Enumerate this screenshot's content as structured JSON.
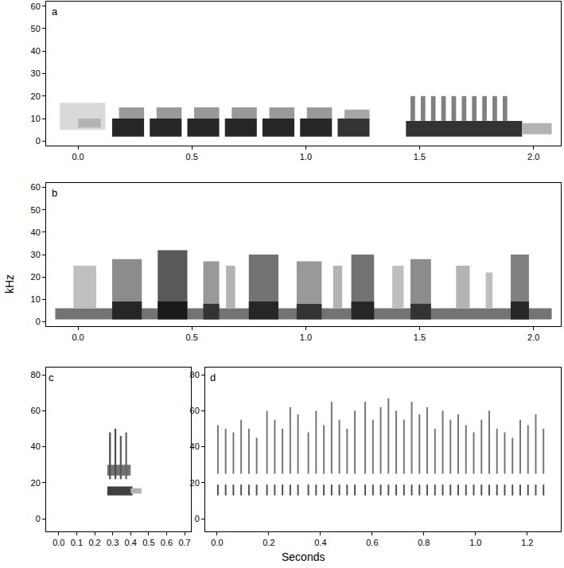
{
  "chart_data": [
    {
      "type": "spectrogram",
      "label": "a",
      "xlim": [
        -0.14,
        2.12
      ],
      "ylim": [
        -2,
        62
      ],
      "xticks": [
        {
          "value": 0,
          "label": "0.0"
        },
        0.5,
        {
          "value": 1,
          "label": "1.0"
        },
        1.5,
        {
          "value": 2,
          "label": "2.0"
        }
      ],
      "yticks": [
        0,
        10,
        20,
        30,
        40,
        50,
        60
      ],
      "grid": false,
      "marks": [
        [
          -0.08,
          0.12,
          5,
          17,
          0.15
        ],
        [
          0.0,
          0.1,
          6,
          10,
          0.3
        ],
        [
          0.15,
          0.29,
          2,
          10,
          0.85
        ],
        [
          0.18,
          0.29,
          10,
          15,
          0.4
        ],
        [
          0.315,
          0.455,
          2,
          10,
          0.85
        ],
        [
          0.345,
          0.455,
          10,
          15,
          0.4
        ],
        [
          0.48,
          0.62,
          2,
          10,
          0.85
        ],
        [
          0.51,
          0.62,
          10,
          15,
          0.4
        ],
        [
          0.645,
          0.785,
          2,
          10,
          0.85
        ],
        [
          0.675,
          0.785,
          10,
          15,
          0.4
        ],
        [
          0.81,
          0.95,
          2,
          10,
          0.85
        ],
        [
          0.84,
          0.95,
          10,
          15,
          0.4
        ],
        [
          0.975,
          1.115,
          2,
          10,
          0.85
        ],
        [
          1.005,
          1.115,
          10,
          15,
          0.4
        ],
        [
          1.14,
          1.28,
          2,
          10,
          0.8
        ],
        [
          1.17,
          1.28,
          10,
          14,
          0.35
        ],
        [
          1.44,
          1.95,
          2,
          9,
          0.8
        ],
        [
          1.46,
          1.48,
          9,
          20,
          0.5
        ],
        [
          1.505,
          1.525,
          9,
          20,
          0.5
        ],
        [
          1.55,
          1.57,
          9,
          20,
          0.5
        ],
        [
          1.595,
          1.615,
          9,
          20,
          0.5
        ],
        [
          1.64,
          1.66,
          9,
          20,
          0.5
        ],
        [
          1.685,
          1.705,
          9,
          20,
          0.5
        ],
        [
          1.73,
          1.75,
          9,
          20,
          0.5
        ],
        [
          1.775,
          1.795,
          9,
          20,
          0.5
        ],
        [
          1.82,
          1.84,
          9,
          20,
          0.5
        ],
        [
          1.865,
          1.885,
          9,
          20,
          0.5
        ],
        [
          1.95,
          2.08,
          3,
          8,
          0.3
        ]
      ]
    },
    {
      "type": "spectrogram",
      "label": "b",
      "xlim": [
        -0.14,
        2.12
      ],
      "ylim": [
        -2,
        62
      ],
      "xticks": [
        {
          "value": 0,
          "label": "0.0"
        },
        0.5,
        {
          "value": 1,
          "label": "1.0"
        },
        1.5,
        {
          "value": 2,
          "label": "2.0"
        }
      ],
      "yticks": [
        0,
        10,
        20,
        30,
        40,
        50,
        60
      ],
      "grid": false,
      "marks": [
        [
          -0.1,
          2.08,
          1,
          6,
          0.55
        ],
        [
          -0.02,
          0.08,
          6,
          25,
          0.25
        ],
        [
          0.15,
          0.28,
          6,
          28,
          0.45
        ],
        [
          0.15,
          0.28,
          1,
          9,
          0.85
        ],
        [
          0.35,
          0.48,
          6,
          32,
          0.65
        ],
        [
          0.35,
          0.48,
          1,
          9,
          0.9
        ],
        [
          0.55,
          0.62,
          6,
          27,
          0.4
        ],
        [
          0.55,
          0.62,
          1,
          8,
          0.8
        ],
        [
          0.65,
          0.69,
          6,
          25,
          0.3
        ],
        [
          0.75,
          0.88,
          6,
          30,
          0.55
        ],
        [
          0.75,
          0.88,
          1,
          9,
          0.85
        ],
        [
          0.96,
          1.07,
          6,
          27,
          0.4
        ],
        [
          0.96,
          1.07,
          1,
          8,
          0.8
        ],
        [
          1.12,
          1.16,
          6,
          25,
          0.3
        ],
        [
          1.2,
          1.3,
          6,
          30,
          0.55
        ],
        [
          1.2,
          1.3,
          1,
          9,
          0.85
        ],
        [
          1.38,
          1.43,
          6,
          25,
          0.25
        ],
        [
          1.46,
          1.55,
          6,
          28,
          0.45
        ],
        [
          1.46,
          1.55,
          1,
          8,
          0.8
        ],
        [
          1.66,
          1.72,
          6,
          25,
          0.3
        ],
        [
          1.79,
          1.82,
          6,
          22,
          0.25
        ],
        [
          1.9,
          1.98,
          6,
          30,
          0.5
        ],
        [
          1.9,
          1.98,
          1,
          9,
          0.85
        ]
      ]
    },
    {
      "type": "spectrogram",
      "label": "c",
      "xlim": [
        -0.07,
        0.735
      ],
      "ylim": [
        -7,
        84
      ],
      "xticks": [
        {
          "value": 0,
          "label": "0.0"
        },
        0.1,
        0.2,
        0.3,
        0.4,
        0.5,
        0.6,
        0.7
      ],
      "yticks": [
        0,
        20,
        40,
        60,
        80
      ],
      "grid": false,
      "marks": [
        [
          0.27,
          0.41,
          13,
          18,
          0.75
        ],
        [
          0.27,
          0.4,
          24,
          30,
          0.55
        ],
        [
          0.28,
          0.29,
          22,
          48,
          0.7
        ],
        [
          0.31,
          0.32,
          22,
          50,
          0.7
        ],
        [
          0.34,
          0.35,
          22,
          46,
          0.65
        ],
        [
          0.37,
          0.38,
          22,
          48,
          0.6
        ],
        [
          0.4,
          0.46,
          14,
          17,
          0.3
        ]
      ]
    },
    {
      "type": "spectrogram",
      "label": "d",
      "xlim": [
        -0.046,
        1.33
      ],
      "ylim": [
        -7,
        84
      ],
      "xticks": [
        {
          "value": 0,
          "label": "0.0"
        },
        0.2,
        0.4,
        0.6,
        0.8,
        {
          "value": 1,
          "label": "1.0"
        },
        1.2
      ],
      "yticks": [
        0,
        20,
        40,
        60,
        80
      ],
      "grid": false,
      "marks": [
        [
          0.0,
          0.006,
          13,
          19,
          0.7
        ],
        [
          0.0,
          0.006,
          25,
          52,
          0.55
        ],
        [
          0.03,
          0.036,
          13,
          19,
          0.7
        ],
        [
          0.03,
          0.036,
          25,
          50,
          0.55
        ],
        [
          0.06,
          0.066,
          13,
          19,
          0.7
        ],
        [
          0.06,
          0.066,
          25,
          48,
          0.55
        ],
        [
          0.09,
          0.096,
          13,
          19,
          0.7
        ],
        [
          0.09,
          0.096,
          25,
          55,
          0.55
        ],
        [
          0.12,
          0.126,
          13,
          19,
          0.7
        ],
        [
          0.12,
          0.126,
          25,
          50,
          0.55
        ],
        [
          0.15,
          0.156,
          13,
          19,
          0.7
        ],
        [
          0.15,
          0.156,
          25,
          45,
          0.55
        ],
        [
          0.19,
          0.196,
          13,
          19,
          0.7
        ],
        [
          0.19,
          0.196,
          25,
          60,
          0.55
        ],
        [
          0.22,
          0.226,
          13,
          19,
          0.7
        ],
        [
          0.22,
          0.226,
          25,
          55,
          0.55
        ],
        [
          0.25,
          0.256,
          13,
          19,
          0.7
        ],
        [
          0.25,
          0.256,
          25,
          50,
          0.55
        ],
        [
          0.28,
          0.286,
          13,
          19,
          0.7
        ],
        [
          0.28,
          0.286,
          25,
          62,
          0.55
        ],
        [
          0.31,
          0.316,
          13,
          19,
          0.7
        ],
        [
          0.31,
          0.316,
          25,
          58,
          0.55
        ],
        [
          0.35,
          0.356,
          13,
          19,
          0.7
        ],
        [
          0.35,
          0.356,
          25,
          48,
          0.55
        ],
        [
          0.38,
          0.386,
          13,
          19,
          0.7
        ],
        [
          0.38,
          0.386,
          25,
          60,
          0.55
        ],
        [
          0.41,
          0.416,
          13,
          19,
          0.7
        ],
        [
          0.41,
          0.416,
          25,
          52,
          0.55
        ],
        [
          0.44,
          0.446,
          13,
          19,
          0.7
        ],
        [
          0.44,
          0.446,
          25,
          65,
          0.55
        ],
        [
          0.47,
          0.476,
          13,
          19,
          0.7
        ],
        [
          0.47,
          0.476,
          25,
          55,
          0.55
        ],
        [
          0.5,
          0.506,
          13,
          19,
          0.7
        ],
        [
          0.5,
          0.506,
          25,
          50,
          0.55
        ],
        [
          0.53,
          0.536,
          13,
          19,
          0.7
        ],
        [
          0.53,
          0.536,
          25,
          60,
          0.55
        ],
        [
          0.57,
          0.576,
          13,
          19,
          0.7
        ],
        [
          0.57,
          0.576,
          25,
          65,
          0.55
        ],
        [
          0.6,
          0.606,
          13,
          19,
          0.7
        ],
        [
          0.6,
          0.606,
          25,
          55,
          0.55
        ],
        [
          0.63,
          0.636,
          13,
          19,
          0.7
        ],
        [
          0.63,
          0.636,
          25,
          62,
          0.55
        ],
        [
          0.66,
          0.666,
          13,
          19,
          0.7
        ],
        [
          0.66,
          0.666,
          25,
          67,
          0.55
        ],
        [
          0.69,
          0.696,
          13,
          19,
          0.7
        ],
        [
          0.69,
          0.696,
          25,
          60,
          0.55
        ],
        [
          0.72,
          0.726,
          13,
          19,
          0.7
        ],
        [
          0.72,
          0.726,
          25,
          55,
          0.55
        ],
        [
          0.75,
          0.756,
          13,
          19,
          0.7
        ],
        [
          0.75,
          0.756,
          25,
          65,
          0.55
        ],
        [
          0.78,
          0.786,
          13,
          19,
          0.7
        ],
        [
          0.78,
          0.786,
          25,
          58,
          0.55
        ],
        [
          0.81,
          0.816,
          13,
          19,
          0.7
        ],
        [
          0.81,
          0.816,
          25,
          62,
          0.55
        ],
        [
          0.84,
          0.846,
          13,
          19,
          0.7
        ],
        [
          0.84,
          0.846,
          25,
          50,
          0.55
        ],
        [
          0.87,
          0.876,
          13,
          19,
          0.7
        ],
        [
          0.87,
          0.876,
          25,
          60,
          0.55
        ],
        [
          0.9,
          0.906,
          13,
          19,
          0.7
        ],
        [
          0.9,
          0.906,
          25,
          55,
          0.55
        ],
        [
          0.93,
          0.936,
          13,
          19,
          0.7
        ],
        [
          0.93,
          0.936,
          25,
          58,
          0.55
        ],
        [
          0.96,
          0.966,
          13,
          19,
          0.7
        ],
        [
          0.96,
          0.966,
          25,
          52,
          0.55
        ],
        [
          0.99,
          0.996,
          13,
          19,
          0.7
        ],
        [
          0.99,
          0.996,
          25,
          48,
          0.55
        ],
        [
          1.02,
          1.026,
          13,
          19,
          0.7
        ],
        [
          1.02,
          1.026,
          25,
          55,
          0.55
        ],
        [
          1.05,
          1.056,
          13,
          19,
          0.7
        ],
        [
          1.05,
          1.056,
          25,
          60,
          0.55
        ],
        [
          1.08,
          1.086,
          13,
          19,
          0.7
        ],
        [
          1.08,
          1.086,
          25,
          50,
          0.55
        ],
        [
          1.11,
          1.116,
          13,
          19,
          0.7
        ],
        [
          1.11,
          1.116,
          25,
          48,
          0.55
        ],
        [
          1.14,
          1.146,
          13,
          19,
          0.7
        ],
        [
          1.14,
          1.146,
          25,
          45,
          0.55
        ],
        [
          1.17,
          1.176,
          13,
          19,
          0.7
        ],
        [
          1.17,
          1.176,
          25,
          55,
          0.55
        ],
        [
          1.2,
          1.206,
          13,
          19,
          0.7
        ],
        [
          1.2,
          1.206,
          25,
          52,
          0.55
        ],
        [
          1.23,
          1.236,
          13,
          19,
          0.7
        ],
        [
          1.23,
          1.236,
          25,
          58,
          0.55
        ],
        [
          1.26,
          1.266,
          13,
          19,
          0.7
        ],
        [
          1.26,
          1.266,
          25,
          50,
          0.55
        ]
      ]
    }
  ],
  "shared": {
    "xlabel": "Seconds",
    "ylabel": "kHz"
  }
}
